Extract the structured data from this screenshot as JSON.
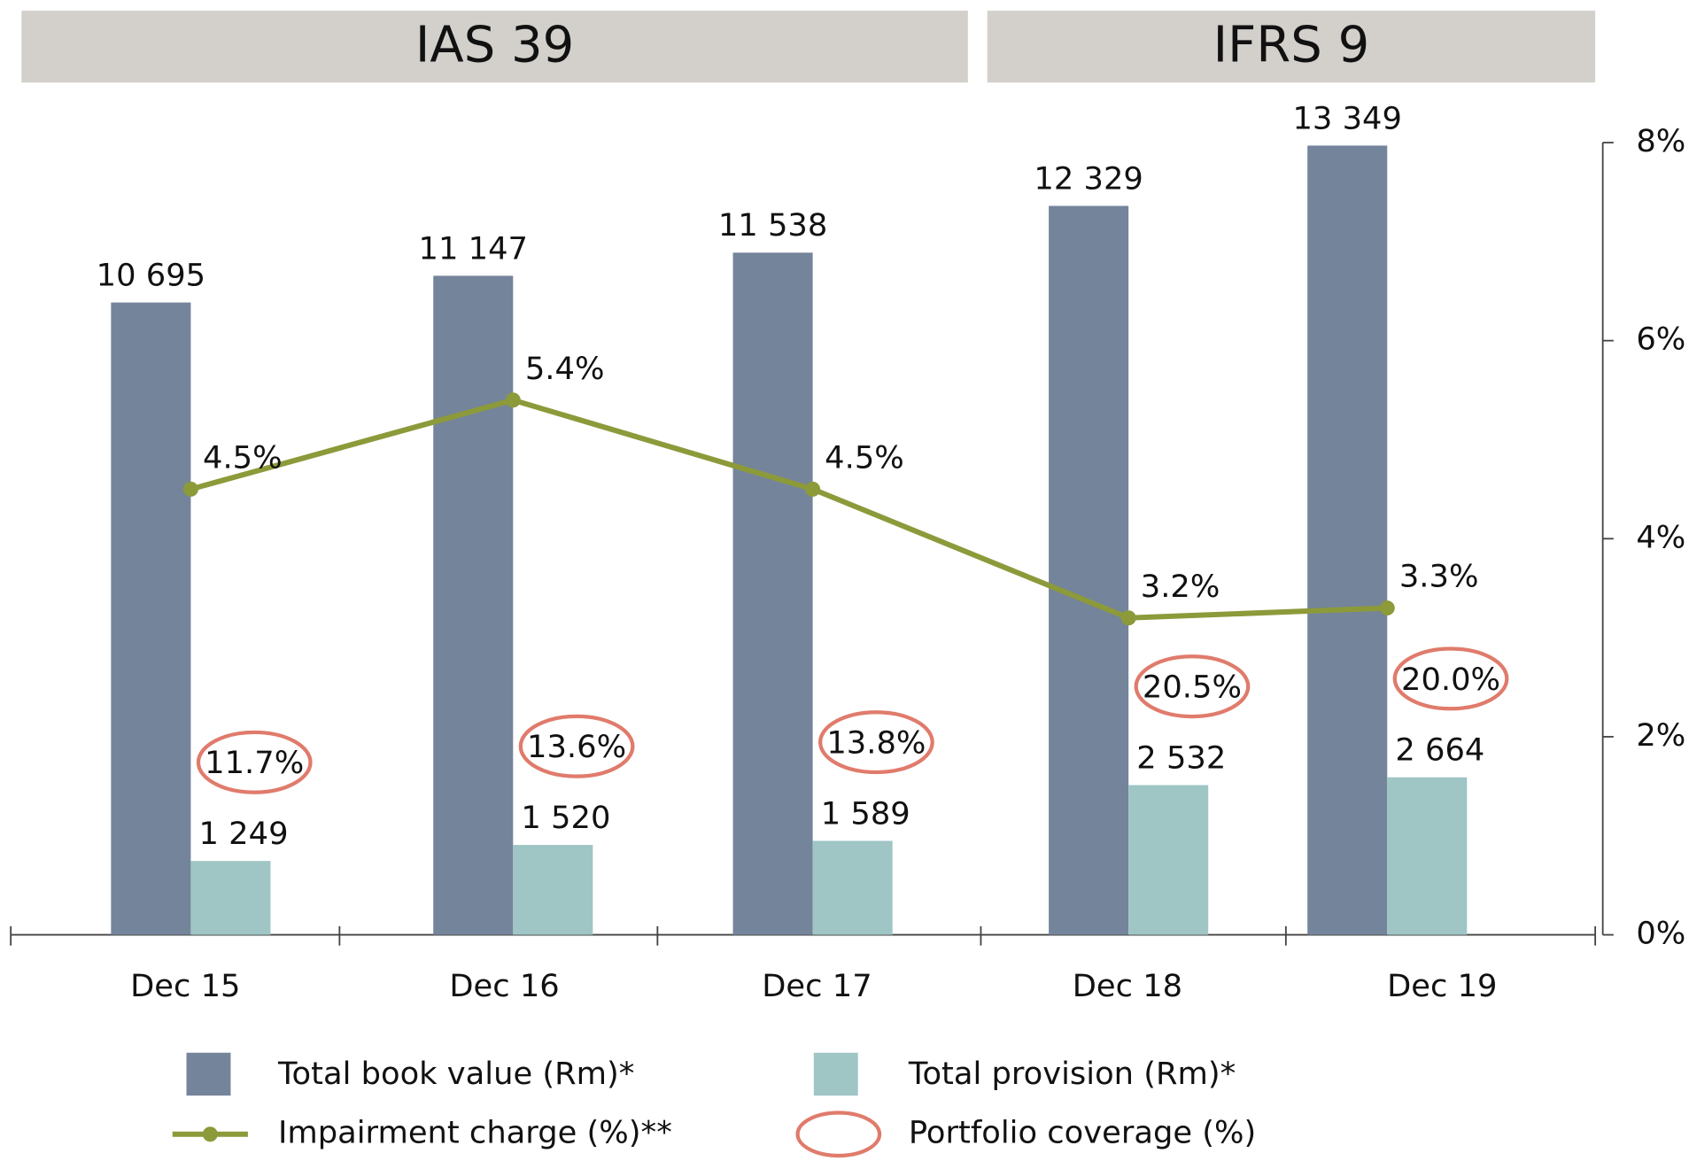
{
  "chart_data": {
    "type": "bar",
    "group_labels": [
      "IAS 39",
      "IFRS 9"
    ],
    "categories": [
      "Dec 15",
      "Dec 16",
      "Dec 17",
      "Dec 18",
      "Dec 19"
    ],
    "ylim": [
      0,
      13400
    ],
    "y2lim": [
      0,
      8
    ],
    "y2ticks": [
      {
        "value": 0,
        "label": "0%"
      },
      {
        "value": 2,
        "label": "2%"
      },
      {
        "value": 4,
        "label": "4%"
      },
      {
        "value": 6,
        "label": "6%"
      },
      {
        "value": 8,
        "label": "8%"
      }
    ],
    "series": [
      {
        "name": "Total book value (Rm)*",
        "type": "bar",
        "color": "#74849b",
        "values": [
          10695,
          11147,
          11538,
          12329,
          13349
        ],
        "value_labels": [
          "10 695",
          "11 147",
          "11 538",
          "12 329",
          "13 349"
        ]
      },
      {
        "name": "Total provision (Rm)*",
        "type": "bar",
        "color": "#9fc5c5",
        "values": [
          1249,
          1520,
          1589,
          2532,
          2664
        ],
        "value_labels": [
          "1 249",
          "1 520",
          "1 589",
          "2 532",
          "2 664"
        ]
      },
      {
        "name": "Impairment charge (%)**",
        "type": "line",
        "axis": "y2",
        "color": "#8c9a3a",
        "values": [
          4.5,
          5.4,
          4.5,
          3.2,
          3.3
        ],
        "value_labels": [
          "4.5%",
          "5.4%",
          "4.5%",
          "3.2%",
          "3.3%"
        ]
      },
      {
        "name": "Portfolio coverage (%)",
        "type": "annotation",
        "color": "#e07b6c",
        "values": [
          11.7,
          13.6,
          13.8,
          20.5,
          20.0
        ],
        "value_labels": [
          "11.7%",
          "13.6%",
          "13.8%",
          "20.5%",
          "20.0%"
        ]
      }
    ]
  }
}
